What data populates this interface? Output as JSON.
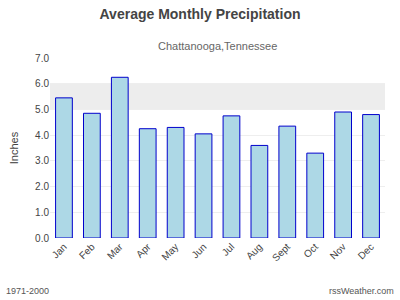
{
  "chart_data": {
    "type": "bar",
    "title": "Average Monthly Precipitation",
    "subtitle": "Chattanooga,Tennessee",
    "ylabel": "Inches",
    "categories": [
      "Jan",
      "Feb",
      "Mar",
      "Apr",
      "May",
      "Jun",
      "Jul",
      "Aug",
      "Sept",
      "Oct",
      "Nov",
      "Dec"
    ],
    "values": [
      5.45,
      4.85,
      6.25,
      4.25,
      4.3,
      4.05,
      4.75,
      3.6,
      4.35,
      3.3,
      4.9,
      4.8
    ],
    "color": "#add8e6",
    "ylim": [
      0,
      7.0
    ],
    "yticks": [
      {
        "value": 0.0,
        "label": "0.0"
      },
      {
        "value": 1.0,
        "label": "1.0"
      },
      {
        "value": 2.0,
        "label": "2.0"
      },
      {
        "value": 3.0,
        "label": "3.0"
      },
      {
        "value": 4.0,
        "label": "4.0"
      },
      {
        "value": 5.0,
        "label": "5.0"
      },
      {
        "value": 6.0,
        "label": "6.0"
      },
      {
        "value": 7.0,
        "label": "7.0"
      }
    ],
    "grid": true,
    "highlight_band": [
      5.0,
      6.0
    ],
    "annotations": [
      "1971-2000",
      "rssWeather.com"
    ]
  }
}
